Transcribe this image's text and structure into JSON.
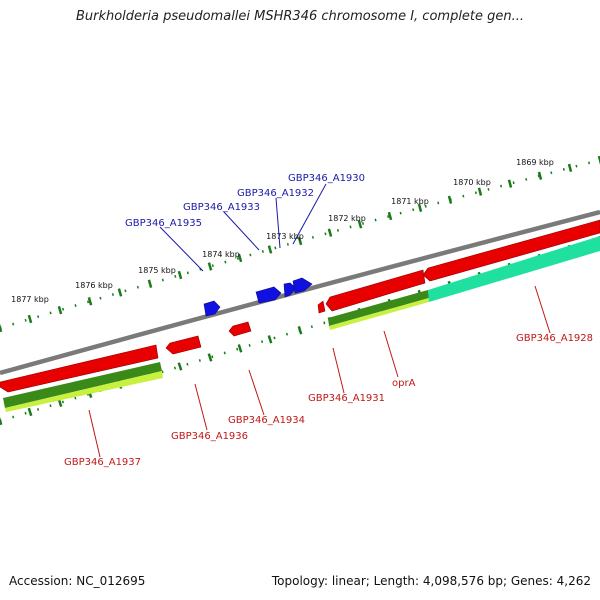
{
  "title": "Burkholderia pseudomallei MSHR346 chromosome I, complete gen...",
  "scale_labels": [
    "1869 kbp",
    "1870 kbp",
    "1871 kbp",
    "1872 kbp",
    "1873 kbp",
    "1874 kbp",
    "1875 kbp",
    "1876 kbp",
    "1877 kbp"
  ],
  "gene_labels": {
    "blue": [
      "GBP346_A1930",
      "GBP346_A1932",
      "GBP346_A1933",
      "GBP346_A1935"
    ],
    "red": [
      "GBP346_A1928",
      "oprA",
      "GBP346_A1931",
      "GBP346_A1934",
      "GBP346_A1936",
      "GBP346_A1937"
    ]
  },
  "footer": {
    "accession": "Accession: NC_012695",
    "summary": "Topology: linear; Length: 4,098,576 bp; Genes: 4,262"
  },
  "colors": {
    "blue_feature": "#1010e0",
    "blue_label": "#1a1aa8",
    "red_feature": "#e00000",
    "red_label": "#c01818",
    "backbone": "#808080",
    "tick": "#1a7a1a",
    "green_dark": "#3a8a1a",
    "green_light": "#c8f040",
    "teal": "#20e0a0"
  }
}
